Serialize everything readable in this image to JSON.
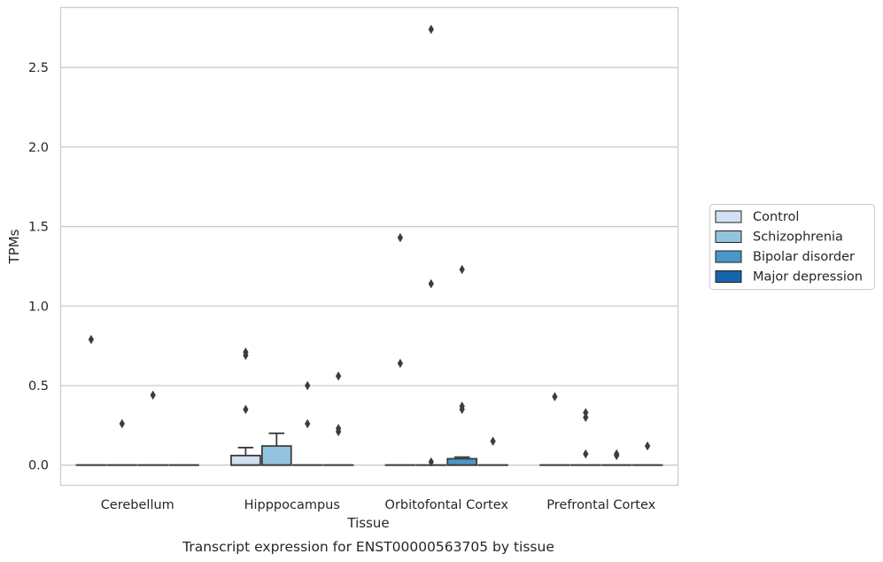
{
  "caption": "Transcript expression for ENST00000563705 by tissue",
  "chart_data": {
    "type": "box",
    "xlabel": "Tissue",
    "ylabel": "TPMs",
    "ylim": [
      -0.13,
      2.88
    ],
    "yticks": [
      0.0,
      0.5,
      1.0,
      1.5,
      2.0,
      2.5
    ],
    "ytick_labels": [
      "0.0",
      "0.5",
      "1.0",
      "1.5",
      "2.0",
      "2.5"
    ],
    "grid": "horizontal",
    "legend_position": "right",
    "categories": [
      "Cerebellum",
      "Hipppocampus",
      "Orbitofontal Cortex",
      "Prefrontal Cortex"
    ],
    "series": [
      {
        "name": "Control",
        "color": "#cfe1f2",
        "boxes": [
          {
            "q1": 0,
            "median": 0,
            "q3": 0,
            "whisker_low": 0,
            "whisker_high": 0,
            "outliers": [
              0.79
            ]
          },
          {
            "q1": 0,
            "median": 0,
            "q3": 0.06,
            "whisker_low": 0,
            "whisker_high": 0.11,
            "outliers": [
              0.35,
              0.69,
              0.71
            ]
          },
          {
            "q1": 0,
            "median": 0,
            "q3": 0,
            "whisker_low": 0,
            "whisker_high": 0,
            "outliers": [
              0.64,
              1.43
            ]
          },
          {
            "q1": 0,
            "median": 0,
            "q3": 0,
            "whisker_low": 0,
            "whisker_high": 0,
            "outliers": [
              0.43
            ]
          }
        ]
      },
      {
        "name": "Schizophrenia",
        "color": "#93c4de",
        "boxes": [
          {
            "q1": 0,
            "median": 0,
            "q3": 0,
            "whisker_low": 0,
            "whisker_high": 0,
            "outliers": [
              0.26
            ]
          },
          {
            "q1": 0,
            "median": 0,
            "q3": 0.12,
            "whisker_low": 0,
            "whisker_high": 0.2,
            "outliers": []
          },
          {
            "q1": 0,
            "median": 0,
            "q3": 0,
            "whisker_low": 0,
            "whisker_high": 0,
            "outliers": [
              0.02,
              1.14,
              2.74
            ]
          },
          {
            "q1": 0,
            "median": 0,
            "q3": 0,
            "whisker_low": 0,
            "whisker_high": 0,
            "outliers": [
              0.07,
              0.3,
              0.33
            ]
          }
        ]
      },
      {
        "name": "Bipolar disorder",
        "color": "#4a98c9",
        "boxes": [
          {
            "q1": 0,
            "median": 0,
            "q3": 0,
            "whisker_low": 0,
            "whisker_high": 0,
            "outliers": [
              0.44
            ]
          },
          {
            "q1": 0,
            "median": 0,
            "q3": 0,
            "whisker_low": 0,
            "whisker_high": 0,
            "outliers": [
              0.26,
              0.5
            ]
          },
          {
            "q1": 0,
            "median": 0,
            "q3": 0.04,
            "whisker_low": 0,
            "whisker_high": 0.05,
            "outliers": [
              0.35,
              0.37,
              1.23
            ]
          },
          {
            "q1": 0,
            "median": 0,
            "q3": 0,
            "whisker_low": 0,
            "whisker_high": 0,
            "outliers": [
              0.06,
              0.07
            ]
          }
        ]
      },
      {
        "name": "Major depression",
        "color": "#1764ab",
        "boxes": [
          {
            "q1": 0,
            "median": 0,
            "q3": 0,
            "whisker_low": 0,
            "whisker_high": 0,
            "outliers": []
          },
          {
            "q1": 0,
            "median": 0,
            "q3": 0,
            "whisker_low": 0,
            "whisker_high": 0,
            "outliers": [
              0.21,
              0.23,
              0.56
            ]
          },
          {
            "q1": 0,
            "median": 0,
            "q3": 0,
            "whisker_low": 0,
            "whisker_high": 0,
            "outliers": [
              0.15
            ]
          },
          {
            "q1": 0,
            "median": 0,
            "q3": 0,
            "whisker_low": 0,
            "whisker_high": 0,
            "outliers": [
              0.12
            ]
          }
        ]
      }
    ]
  }
}
